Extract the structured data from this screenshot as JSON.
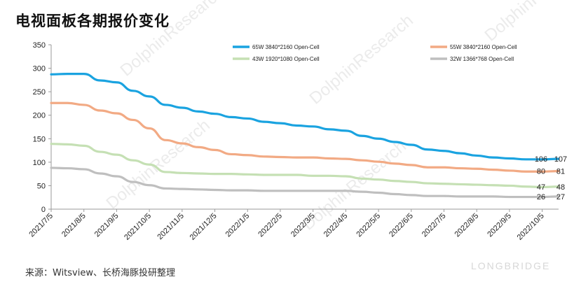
{
  "title": "电视面板各期报价变化",
  "source": "来源：Witsview、长桥海豚投研整理",
  "watermark": {
    "lines": [
      "LONGBRIDGE",
      "DolphinResearch"
    ],
    "brand": "LONGBRIDGE"
  },
  "chart_data": {
    "type": "line",
    "ylim": [
      0,
      350
    ],
    "yticks": [
      0,
      50,
      100,
      150,
      200,
      250,
      300,
      350
    ],
    "grid": false,
    "legend_position": "top",
    "xticks": [
      "2021/7/5",
      "2021/8/5",
      "2021/9/5",
      "2021/10/5",
      "2021/11/5",
      "2021/12/5",
      "2022/1/5",
      "2022/2/5",
      "2022/3/5",
      "2022/4/5",
      "2022/5/5",
      "2022/6/5",
      "2022/7/5",
      "2022/8/5",
      "2022/9/5",
      "2022/10/5"
    ],
    "x": [
      "2021/7/5",
      "2021/7/20",
      "2021/8/5",
      "2021/8/20",
      "2021/9/5",
      "2021/9/20",
      "2021/10/5",
      "2021/10/20",
      "2021/11/5",
      "2021/11/20",
      "2021/12/5",
      "2021/12/20",
      "2022/1/5",
      "2022/1/20",
      "2022/2/5",
      "2022/2/20",
      "2022/3/5",
      "2022/3/20",
      "2022/4/5",
      "2022/4/20",
      "2022/5/5",
      "2022/5/20",
      "2022/6/5",
      "2022/6/20",
      "2022/7/5",
      "2022/7/20",
      "2022/8/5",
      "2022/8/20",
      "2022/9/5",
      "2022/9/20",
      "2022/10/5",
      "2022/10/20"
    ],
    "series": [
      {
        "name": "65W 3840*2160 Open-Cell",
        "color": "#1aa3e0",
        "values": [
          287,
          288,
          288,
          274,
          270,
          252,
          240,
          222,
          216,
          208,
          203,
          196,
          193,
          186,
          183,
          178,
          176,
          170,
          167,
          156,
          150,
          143,
          137,
          127,
          124,
          119,
          114,
          110,
          108,
          106,
          106,
          107
        ],
        "end_labels": [
          "106",
          "107"
        ]
      },
      {
        "name": "55W 3840*2160 Open-Cell",
        "color": "#f2aa84",
        "values": [
          226,
          226,
          222,
          210,
          204,
          190,
          172,
          147,
          140,
          132,
          126,
          117,
          115,
          112,
          111,
          110,
          110,
          108,
          107,
          104,
          101,
          97,
          94,
          89,
          89,
          87,
          86,
          84,
          82,
          80,
          80,
          81
        ],
        "end_labels": [
          "80",
          "81"
        ]
      },
      {
        "name": "43W 1920*1080 Open-Cell",
        "color": "#c5e0b4",
        "values": [
          139,
          138,
          135,
          122,
          116,
          104,
          95,
          79,
          77,
          76,
          75,
          75,
          74,
          73,
          73,
          73,
          71,
          71,
          70,
          65,
          63,
          60,
          58,
          55,
          54,
          53,
          52,
          51,
          50,
          48,
          47,
          48
        ],
        "end_labels": [
          "47",
          "48"
        ]
      },
      {
        "name": "32W 1366*768 Open-Cell",
        "color": "#bfbfbf",
        "values": [
          88,
          87,
          85,
          76,
          70,
          58,
          51,
          44,
          43,
          42,
          41,
          40,
          40,
          39,
          39,
          39,
          39,
          39,
          39,
          37,
          35,
          32,
          30,
          28,
          28,
          27,
          27,
          27,
          26,
          26,
          26,
          27
        ],
        "end_labels": [
          "26",
          "27"
        ]
      }
    ]
  }
}
